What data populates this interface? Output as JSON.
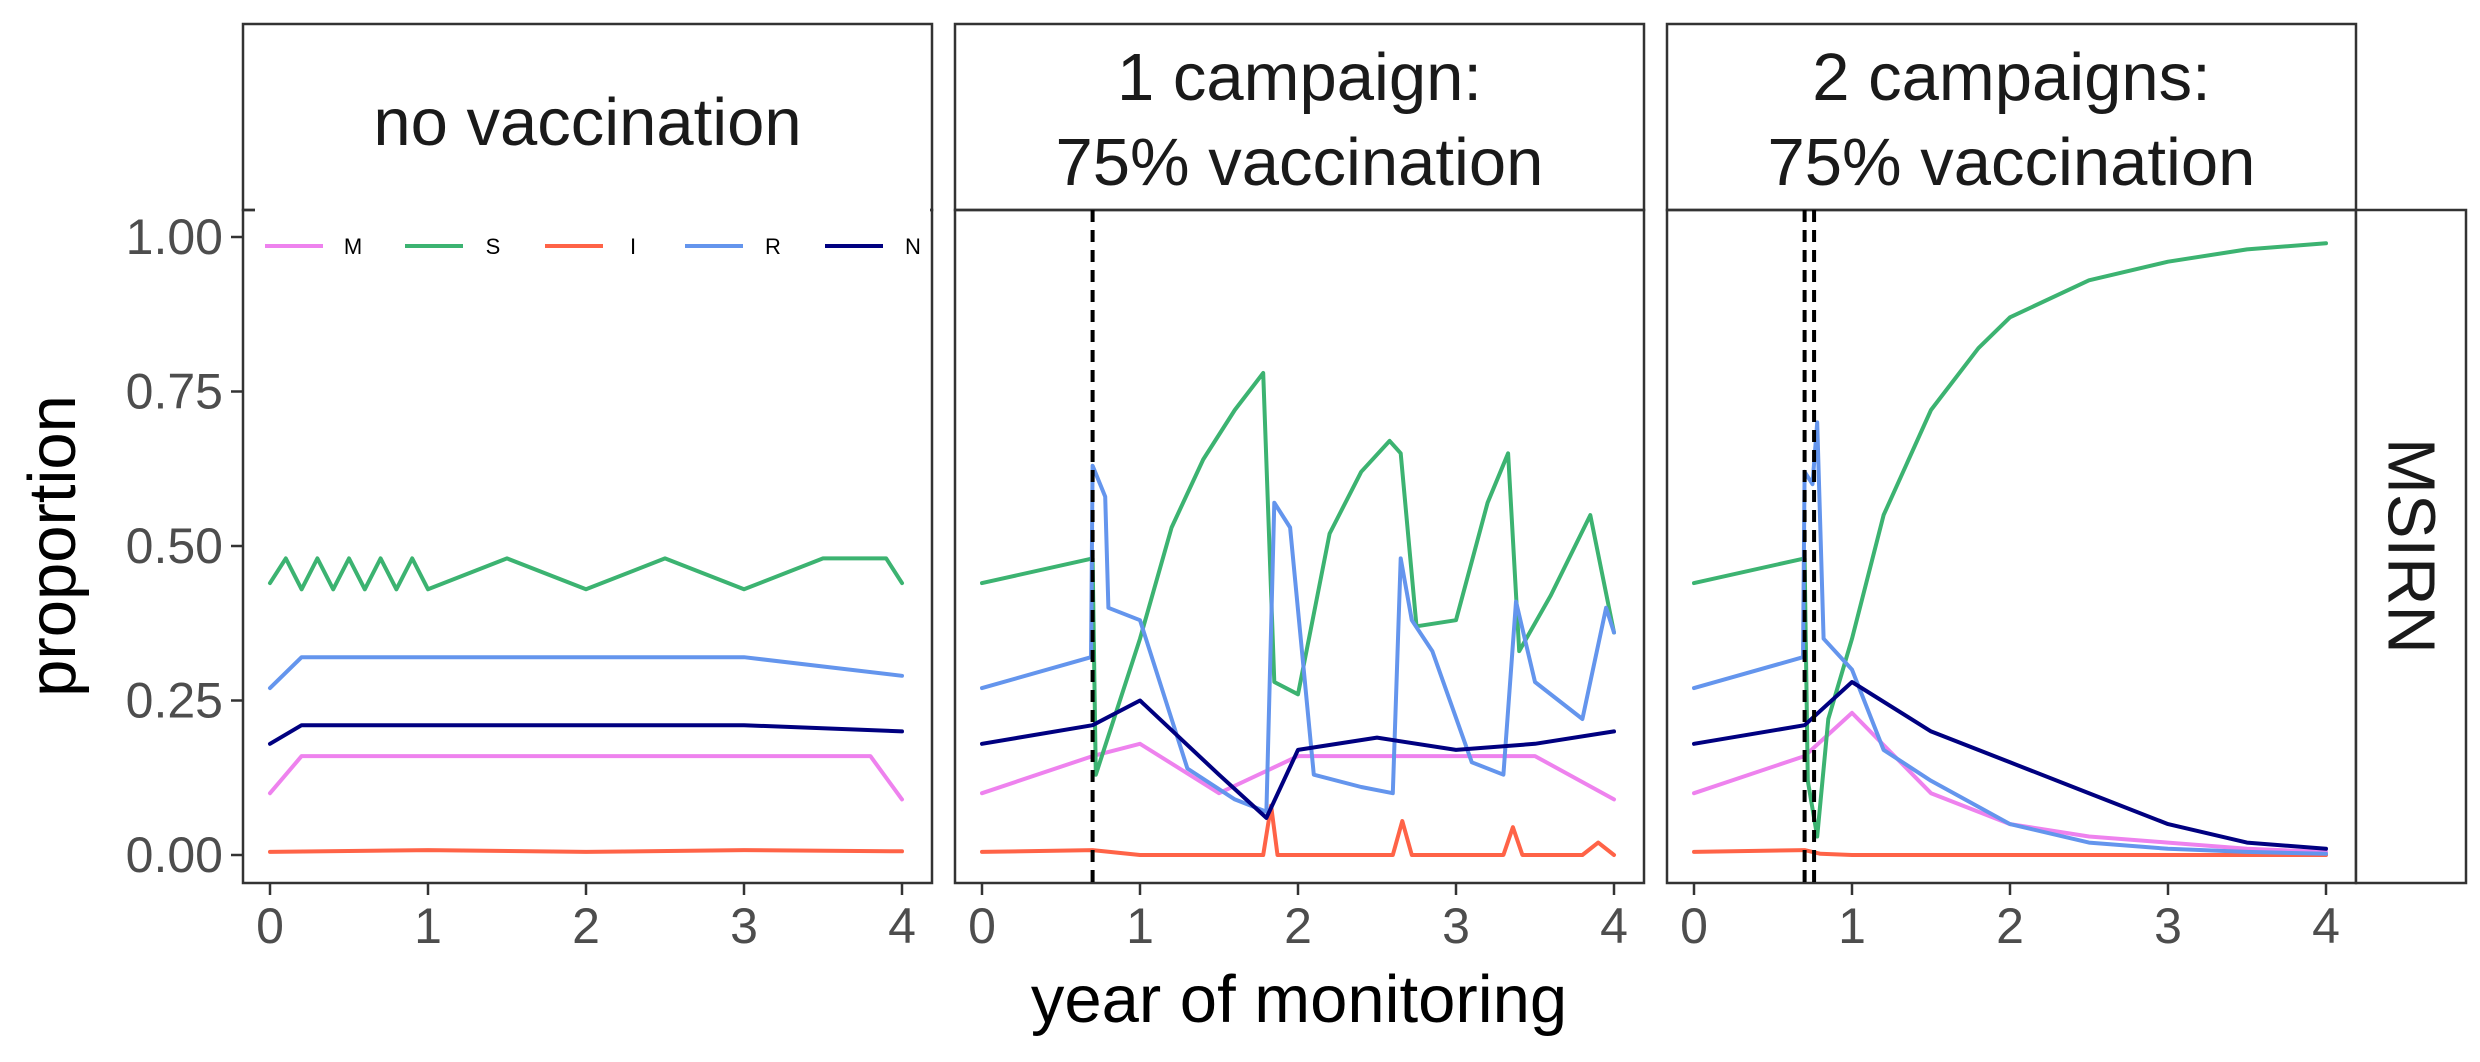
{
  "colors": {
    "M": "#EE82EE",
    "S": "#3CB371",
    "I": "#FF6347",
    "R": "#6495ED",
    "N": "#000080"
  },
  "axes": {
    "xlabel": "year of monitoring",
    "ylabel": "proportion",
    "x_ticks": [
      "0",
      "1",
      "2",
      "3",
      "4"
    ],
    "y_ticks": [
      "0.00",
      "0.25",
      "0.50",
      "0.75",
      "1.00"
    ],
    "row_strip": "MSIRN"
  },
  "legend": {
    "placement": "top-left",
    "entries": [
      "M",
      "S",
      "I",
      "R",
      "N"
    ]
  },
  "panels": [
    {
      "lines": [
        "no vaccination"
      ]
    },
    {
      "lines": [
        "1 campaign:",
        "75% vaccination"
      ]
    },
    {
      "lines": [
        "2 campaigns:",
        "75% vaccination"
      ]
    }
  ],
  "chart_data": [
    {
      "type": "line",
      "title": "no vaccination",
      "xlabel": "year of monitoring",
      "ylabel": "proportion",
      "xlim": [
        0,
        4
      ],
      "ylim": [
        0,
        1
      ],
      "grid": false,
      "vaccination_lines": [],
      "series": [
        {
          "name": "M",
          "x": [
            0,
            0.2,
            0.4,
            0.6,
            0.8,
            1.0,
            1.2,
            1.4,
            1.6,
            1.8,
            2.0,
            2.2,
            2.4,
            2.6,
            2.8,
            3.0,
            3.2,
            3.4,
            3.6,
            3.8,
            4.0
          ],
          "values": [
            0.1,
            0.16,
            0.16,
            0.16,
            0.16,
            0.16,
            0.16,
            0.16,
            0.16,
            0.16,
            0.16,
            0.16,
            0.16,
            0.16,
            0.16,
            0.16,
            0.16,
            0.16,
            0.16,
            0.16,
            0.09
          ]
        },
        {
          "name": "S",
          "x": [
            0,
            0.1,
            0.2,
            0.3,
            0.4,
            0.5,
            0.6,
            0.7,
            0.8,
            0.9,
            1.0,
            1.5,
            2.0,
            2.5,
            3.0,
            3.5,
            3.9,
            4.0
          ],
          "values": [
            0.44,
            0.48,
            0.43,
            0.48,
            0.43,
            0.48,
            0.43,
            0.48,
            0.43,
            0.48,
            0.43,
            0.48,
            0.43,
            0.48,
            0.43,
            0.48,
            0.48,
            0.44
          ]
        },
        {
          "name": "I",
          "x": [
            0,
            1,
            2,
            3,
            4
          ],
          "values": [
            0.005,
            0.008,
            0.005,
            0.008,
            0.006
          ]
        },
        {
          "name": "R",
          "x": [
            0,
            0.2,
            0.4,
            0.6,
            0.8,
            1.0,
            2.0,
            3.0,
            4.0
          ],
          "values": [
            0.27,
            0.32,
            0.32,
            0.32,
            0.32,
            0.32,
            0.32,
            0.32,
            0.29
          ]
        },
        {
          "name": "N",
          "x": [
            0,
            0.2,
            0.4,
            0.6,
            0.8,
            1.0,
            2.0,
            3.0,
            4.0
          ],
          "values": [
            0.18,
            0.21,
            0.21,
            0.21,
            0.21,
            0.21,
            0.21,
            0.21,
            0.2
          ]
        }
      ]
    },
    {
      "type": "line",
      "title": "1 campaign: 75% vaccination",
      "xlabel": "year of monitoring",
      "ylabel": "proportion",
      "xlim": [
        0,
        4
      ],
      "ylim": [
        0,
        1
      ],
      "grid": false,
      "vaccination_lines": [
        0.7
      ],
      "series": [
        {
          "name": "M",
          "x": [
            0,
            0.7,
            1.0,
            1.5,
            2.0,
            2.5,
            3.0,
            3.5,
            4.0
          ],
          "values": [
            0.1,
            0.16,
            0.18,
            0.1,
            0.16,
            0.16,
            0.16,
            0.16,
            0.09
          ]
        },
        {
          "name": "S",
          "x": [
            0,
            0.7,
            0.72,
            1.0,
            1.2,
            1.4,
            1.6,
            1.78,
            1.85,
            2.0,
            2.2,
            2.4,
            2.58,
            2.65,
            2.75,
            3.0,
            3.2,
            3.33,
            3.4,
            3.6,
            3.85,
            4.0
          ],
          "values": [
            0.44,
            0.48,
            0.13,
            0.35,
            0.53,
            0.64,
            0.72,
            0.78,
            0.28,
            0.26,
            0.52,
            0.62,
            0.67,
            0.65,
            0.37,
            0.38,
            0.57,
            0.65,
            0.33,
            0.42,
            0.55,
            0.36
          ]
        },
        {
          "name": "I",
          "x": [
            0,
            0.7,
            1.0,
            1.78,
            1.83,
            1.87,
            2.0,
            2.6,
            2.66,
            2.72,
            3.3,
            3.36,
            3.42,
            3.8,
            3.9,
            4.0
          ],
          "values": [
            0.005,
            0.008,
            0.0,
            0.0,
            0.08,
            0.0,
            0.0,
            0.0,
            0.055,
            0.0,
            0.0,
            0.045,
            0.0,
            0.0,
            0.02,
            0.0
          ]
        },
        {
          "name": "R",
          "x": [
            0,
            0.69,
            0.7,
            0.78,
            0.8,
            1.0,
            1.3,
            1.6,
            1.8,
            1.85,
            1.95,
            2.1,
            2.4,
            2.6,
            2.65,
            2.72,
            2.85,
            3.1,
            3.3,
            3.38,
            3.5,
            3.8,
            3.95,
            4.0
          ],
          "values": [
            0.27,
            0.32,
            0.63,
            0.58,
            0.4,
            0.38,
            0.14,
            0.09,
            0.07,
            0.57,
            0.53,
            0.13,
            0.11,
            0.1,
            0.48,
            0.38,
            0.33,
            0.15,
            0.13,
            0.41,
            0.28,
            0.22,
            0.4,
            0.36
          ]
        },
        {
          "name": "N",
          "x": [
            0,
            0.7,
            1.0,
            1.5,
            1.8,
            2.0,
            2.5,
            3.0,
            3.5,
            4.0
          ],
          "values": [
            0.18,
            0.21,
            0.25,
            0.13,
            0.06,
            0.17,
            0.19,
            0.17,
            0.18,
            0.2
          ]
        }
      ]
    },
    {
      "type": "line",
      "title": "2 campaigns: 75% vaccination",
      "xlabel": "year of monitoring",
      "ylabel": "proportion",
      "xlim": [
        0,
        4
      ],
      "ylim": [
        0,
        1
      ],
      "grid": false,
      "vaccination_lines": [
        0.7,
        0.76
      ],
      "series": [
        {
          "name": "M",
          "x": [
            0,
            0.7,
            1.0,
            1.5,
            2.0,
            2.5,
            3.0,
            3.5,
            4.0
          ],
          "values": [
            0.1,
            0.16,
            0.23,
            0.1,
            0.05,
            0.03,
            0.02,
            0.01,
            0.005
          ]
        },
        {
          "name": "S",
          "x": [
            0,
            0.7,
            0.72,
            0.78,
            0.85,
            1.0,
            1.2,
            1.5,
            1.8,
            2.0,
            2.5,
            3.0,
            3.5,
            4.0
          ],
          "values": [
            0.44,
            0.48,
            0.12,
            0.03,
            0.22,
            0.35,
            0.55,
            0.72,
            0.82,
            0.87,
            0.93,
            0.96,
            0.98,
            0.99
          ]
        },
        {
          "name": "I",
          "x": [
            0,
            0.7,
            0.8,
            1.0,
            2.0,
            3.0,
            4.0
          ],
          "values": [
            0.005,
            0.008,
            0.002,
            0.0,
            0.0,
            0.0,
            0.0
          ]
        },
        {
          "name": "R",
          "x": [
            0,
            0.69,
            0.7,
            0.75,
            0.78,
            0.82,
            1.0,
            1.2,
            1.5,
            2.0,
            2.5,
            3.0,
            3.5,
            4.0
          ],
          "values": [
            0.27,
            0.32,
            0.62,
            0.6,
            0.7,
            0.35,
            0.3,
            0.17,
            0.12,
            0.05,
            0.02,
            0.01,
            0.005,
            0.002
          ]
        },
        {
          "name": "N",
          "x": [
            0,
            0.7,
            1.0,
            1.5,
            2.0,
            2.5,
            3.0,
            3.5,
            4.0
          ],
          "values": [
            0.18,
            0.21,
            0.28,
            0.2,
            0.15,
            0.1,
            0.05,
            0.02,
            0.01
          ]
        }
      ]
    }
  ]
}
